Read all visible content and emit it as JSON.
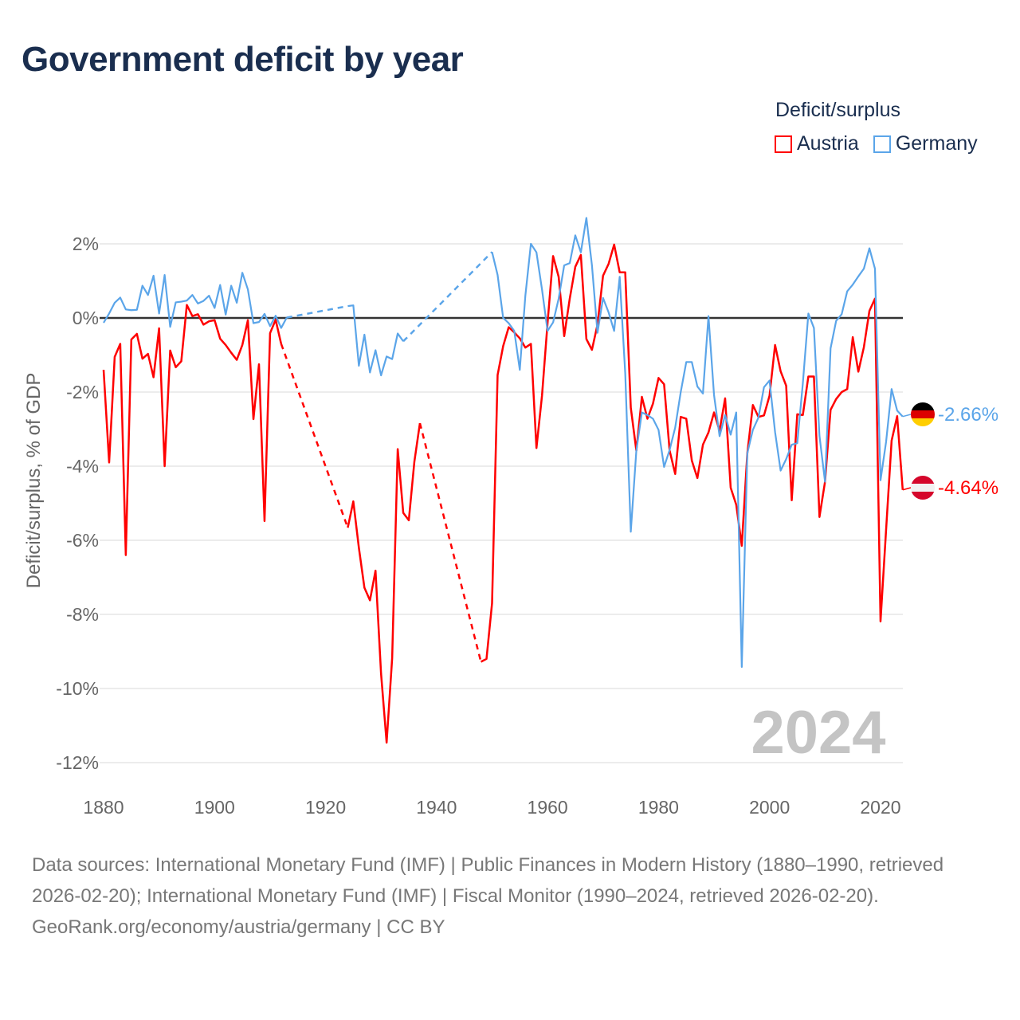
{
  "title": "Government deficit by year",
  "legend": {
    "title": "Deficit/surplus",
    "items": [
      {
        "label": "Austria",
        "color": "#ff0000"
      },
      {
        "label": "Germany",
        "color": "#5ba5e9"
      }
    ]
  },
  "year_watermark": "2024",
  "end_labels": {
    "germany": "-2.66%",
    "austria": "-4.64%"
  },
  "footer": {
    "sources": "Data sources: International Monetary Fund (IMF) | Public Finances in Modern History (1880–1990, retrieved 2026-02-20); International Monetary Fund (IMF) | Fiscal Monitor (1990–2024, retrieved 2026-02-20).",
    "credit": "GeoRank.org/economy/austria/germany | CC BY"
  },
  "chart_data": {
    "type": "line",
    "title": "Government deficit by year",
    "ylabel": "Deficit/surplus, % of GDP",
    "xlabel": "",
    "xlim": [
      1880,
      2024
    ],
    "ylim": [
      -12,
      2
    ],
    "yticks": [
      2,
      0,
      -2,
      -4,
      -6,
      -8,
      -10,
      -12
    ],
    "ytick_labels": [
      "2%",
      "0%",
      "-2%",
      "-4%",
      "-6%",
      "-8%",
      "-10%",
      "-12%"
    ],
    "xticks": [
      1880,
      1900,
      1920,
      1940,
      1960,
      1980,
      2000,
      2020
    ],
    "xtick_labels": [
      "1880",
      "1900",
      "1920",
      "1940",
      "1960",
      "1980",
      "2000",
      "2020"
    ],
    "grid": true,
    "legend_position": "top-right",
    "gap_style": "dashed",
    "series": [
      {
        "name": "Austria",
        "color": "#ff0000",
        "start_years": [
          1880,
          1924,
          1948
        ],
        "segments": [
          [
            -1.4,
            -3.9,
            -1.05,
            -0.7,
            -6.4,
            -0.58,
            -0.43,
            -1.1,
            -0.97,
            -1.6,
            -0.28,
            -4.0,
            -0.88,
            -1.33,
            -1.17,
            0.35,
            0.05,
            0.1,
            -0.18,
            -0.09,
            -0.06,
            -0.56,
            -0.73,
            -0.94,
            -1.13,
            -0.73,
            -0.06,
            -2.73,
            -1.25,
            -5.48,
            -0.41,
            -0.05,
            -0.7
          ],
          [
            -5.66,
            -4.95,
            -6.2,
            -7.28,
            -7.62,
            -6.82,
            -9.6,
            -11.46,
            -9.18,
            -3.54,
            -5.26,
            -5.46,
            -3.88,
            -2.84
          ],
          [
            -9.28,
            -9.2,
            -7.7,
            -1.54,
            -0.76,
            -0.25,
            -0.39,
            -0.55,
            -0.8,
            -0.7,
            -3.51,
            -2.1,
            -0.14,
            1.67,
            1.11,
            -0.49,
            0.52,
            1.38,
            1.7,
            -0.57,
            -0.86,
            -0.18,
            1.14,
            1.46,
            1.98,
            1.23,
            1.23,
            -2.42,
            -3.58,
            -2.13,
            -2.72,
            -2.31,
            -1.62,
            -1.79,
            -3.58,
            -4.21,
            -2.67,
            -2.72,
            -3.85,
            -4.32,
            -3.42,
            -3.09,
            -2.55,
            -3.04,
            -2.17,
            -4.58,
            -5.04,
            -6.15,
            -3.65,
            -2.35,
            -2.67,
            -2.63,
            -2.1,
            -0.73,
            -1.44,
            -1.83,
            -4.92,
            -2.6,
            -2.62,
            -1.58,
            -1.58,
            -5.37,
            -4.42,
            -2.48,
            -2.19,
            -2.0,
            -1.92,
            -0.52,
            -1.45,
            -0.79,
            0.19,
            0.52,
            -8.19,
            -5.73,
            -3.31,
            -2.65,
            -4.64
          ]
        ]
      },
      {
        "name": "Germany",
        "color": "#5ba5e9",
        "start_years": [
          1880,
          1924,
          1950
        ],
        "segments": [
          [
            -0.13,
            0.12,
            0.41,
            0.55,
            0.23,
            0.21,
            0.22,
            0.87,
            0.62,
            1.14,
            0.12,
            1.16,
            -0.24,
            0.42,
            0.44,
            0.47,
            0.62,
            0.39,
            0.46,
            0.6,
            0.27,
            0.89,
            0.09,
            0.87,
            0.41,
            1.22,
            0.77,
            -0.14,
            -0.11,
            0.11,
            -0.22,
            0.06,
            -0.27,
            0.01
          ],
          [
            0.32,
            0.34,
            -1.29,
            -0.45,
            -1.47,
            -0.87,
            -1.55,
            -1.04,
            -1.11,
            -0.42,
            -0.63
          ],
          [
            1.78,
            1.16,
            0.0,
            -0.14,
            -0.35,
            -1.4,
            0.6,
            2.0,
            1.77,
            0.77,
            -0.35,
            -0.12,
            0.52,
            1.42,
            1.48,
            2.23,
            1.77,
            2.7,
            1.42,
            -0.4,
            0.54,
            0.15,
            -0.35,
            1.11,
            -1.5,
            -5.77,
            -3.58,
            -2.55,
            -2.62,
            -2.72,
            -3.02,
            -4.02,
            -3.56,
            -2.96,
            -2.0,
            -1.19,
            -1.19,
            -1.85,
            -2.04,
            0.05,
            -2.08,
            -3.19,
            -2.62,
            -3.15,
            -2.55,
            -9.42,
            -3.65,
            -3.02,
            -2.69,
            -1.87,
            -1.69,
            -3.08,
            -4.12,
            -3.81,
            -3.42,
            -3.38,
            -1.77,
            0.12,
            -0.27,
            -3.18,
            -4.42,
            -0.82,
            -0.08,
            0.1,
            0.72,
            0.9,
            1.12,
            1.33,
            1.88,
            1.33,
            -4.38,
            -3.35,
            -1.92,
            -2.5,
            -2.66
          ]
        ]
      }
    ]
  }
}
